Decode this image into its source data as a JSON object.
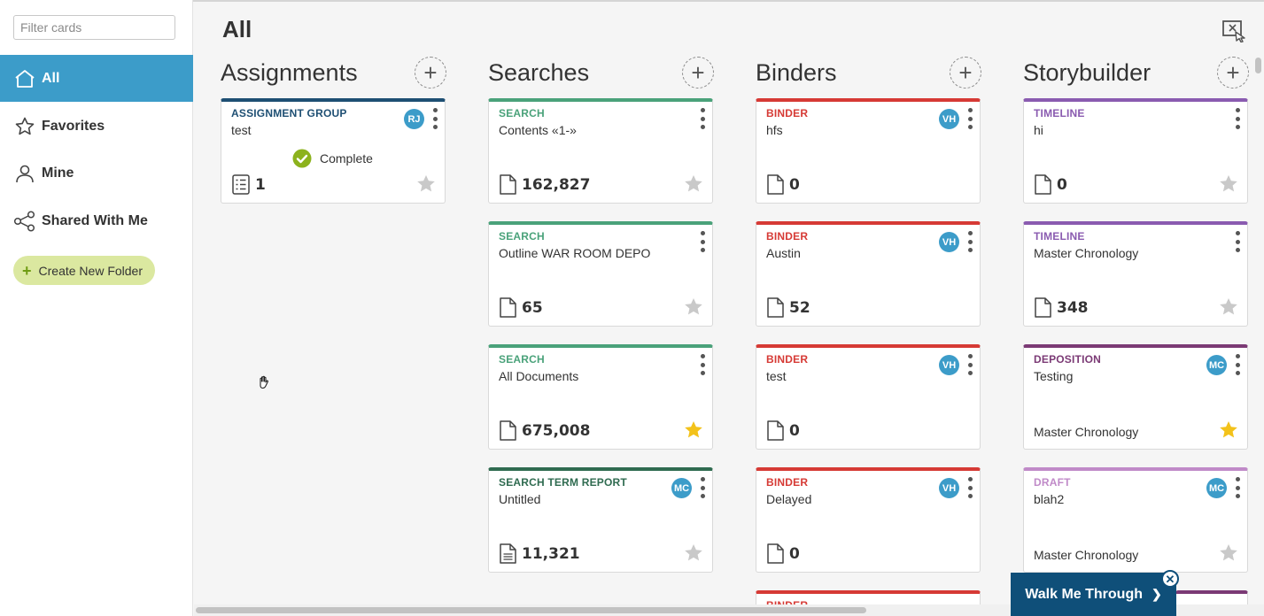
{
  "filter": {
    "placeholder": "Filter cards"
  },
  "sidebar": {
    "items": [
      {
        "label": "All",
        "icon": "home-icon"
      },
      {
        "label": "Favorites",
        "icon": "star-outline-icon"
      },
      {
        "label": "Mine",
        "icon": "user-icon"
      },
      {
        "label": "Shared With Me",
        "icon": "share-icon"
      }
    ],
    "create_folder": "Create New Folder"
  },
  "page": {
    "title": "All"
  },
  "columns": [
    {
      "title": "Assignments"
    },
    {
      "title": "Searches"
    },
    {
      "title": "Binders"
    },
    {
      "title": "Storybuilder"
    }
  ],
  "cards": {
    "assignments": [
      {
        "type": "ASSIGNMENT GROUP",
        "name": "test",
        "avatar": "RJ",
        "status": "Complete",
        "count": "1",
        "starred": false
      }
    ],
    "searches": [
      {
        "type": "SEARCH",
        "name": "Contents «1-»",
        "count": "162,827",
        "starred": false
      },
      {
        "type": "SEARCH",
        "name": "Outline WAR ROOM DEPO",
        "count": "65",
        "starred": false
      },
      {
        "type": "SEARCH",
        "name": "All Documents",
        "count": "675,008",
        "starred": true
      },
      {
        "type": "SEARCH TERM REPORT",
        "name": "Untitled",
        "avatar": "MC",
        "count": "11,321",
        "starred": false
      }
    ],
    "binders": [
      {
        "type": "BINDER",
        "name": "hfs",
        "avatar": "VH",
        "count": "0",
        "starred": false
      },
      {
        "type": "BINDER",
        "name": "Austin",
        "avatar": "VH",
        "count": "52",
        "starred": false
      },
      {
        "type": "BINDER",
        "name": "test",
        "avatar": "VH",
        "count": "0",
        "starred": false
      },
      {
        "type": "BINDER",
        "name": "Delayed",
        "avatar": "VH",
        "count": "0",
        "starred": false
      },
      {
        "type": "BINDER"
      }
    ],
    "storybuilder": [
      {
        "type": "TIMELINE",
        "name": "hi",
        "count": "0",
        "starred": false
      },
      {
        "type": "TIMELINE",
        "name": "Master Chronology",
        "count": "348",
        "starred": false
      },
      {
        "type": "DEPOSITION",
        "name": "Testing",
        "avatar": "MC",
        "subname": "Master Chronology",
        "starred": true
      },
      {
        "type": "DRAFT",
        "name": "blah2",
        "avatar": "MC",
        "subname": "Master Chronology",
        "starred": false
      }
    ]
  },
  "walk_me": {
    "label": "Walk Me Through"
  },
  "colors": {
    "assignment": "#1e4f73",
    "search": "#4aa27a",
    "search_term_report": "#2f6b50",
    "binder": "#d63a35",
    "timeline": "#8a5bb0",
    "deposition": "#7b3a75",
    "draft": "#c08ac8",
    "active_nav": "#3c9cc9",
    "star_active": "#f3c21a",
    "walk_me": "#0f4f79"
  }
}
